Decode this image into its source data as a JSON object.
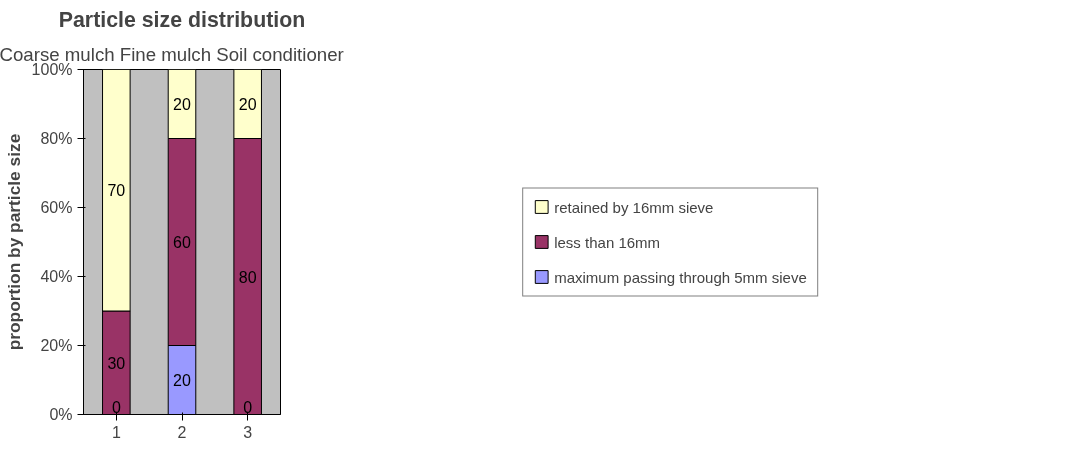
{
  "chart_data": {
    "type": "bar",
    "title": "Particle size distribution",
    "subtitle": "Coarse mulch   Fine mulch   Soil conditioner",
    "ylabel": "proportion by particle size",
    "categories": [
      "1",
      "2",
      "3"
    ],
    "stacked": true,
    "data_labels": true,
    "annotations": [
      {
        "text": "0",
        "x": "1",
        "y": 0
      },
      {
        "text": "0",
        "x": "3",
        "y": 0
      }
    ],
    "legend": "right",
    "grid": false,
    "ylim": [
      0,
      100
    ],
    "yticks": [
      {
        "value": 0,
        "label": "0%"
      },
      {
        "value": 20,
        "label": "20%"
      },
      {
        "value": 40,
        "label": "40%"
      },
      {
        "value": 60,
        "label": "60%"
      },
      {
        "value": 80,
        "label": "80%"
      },
      {
        "value": 100,
        "label": "100%"
      }
    ],
    "series": [
      {
        "name": "maximum passing through 5mm sieve",
        "color": "#9999ff",
        "values": [
          0,
          20,
          0
        ],
        "value_labels": [
          null,
          "20",
          null
        ]
      },
      {
        "name": "less than 16mm",
        "color": "#993366",
        "values": [
          30,
          60,
          80
        ]
      },
      {
        "name": "retained by 16mm sieve",
        "color": "#ffffcc",
        "values": [
          70,
          20,
          20
        ]
      }
    ]
  }
}
